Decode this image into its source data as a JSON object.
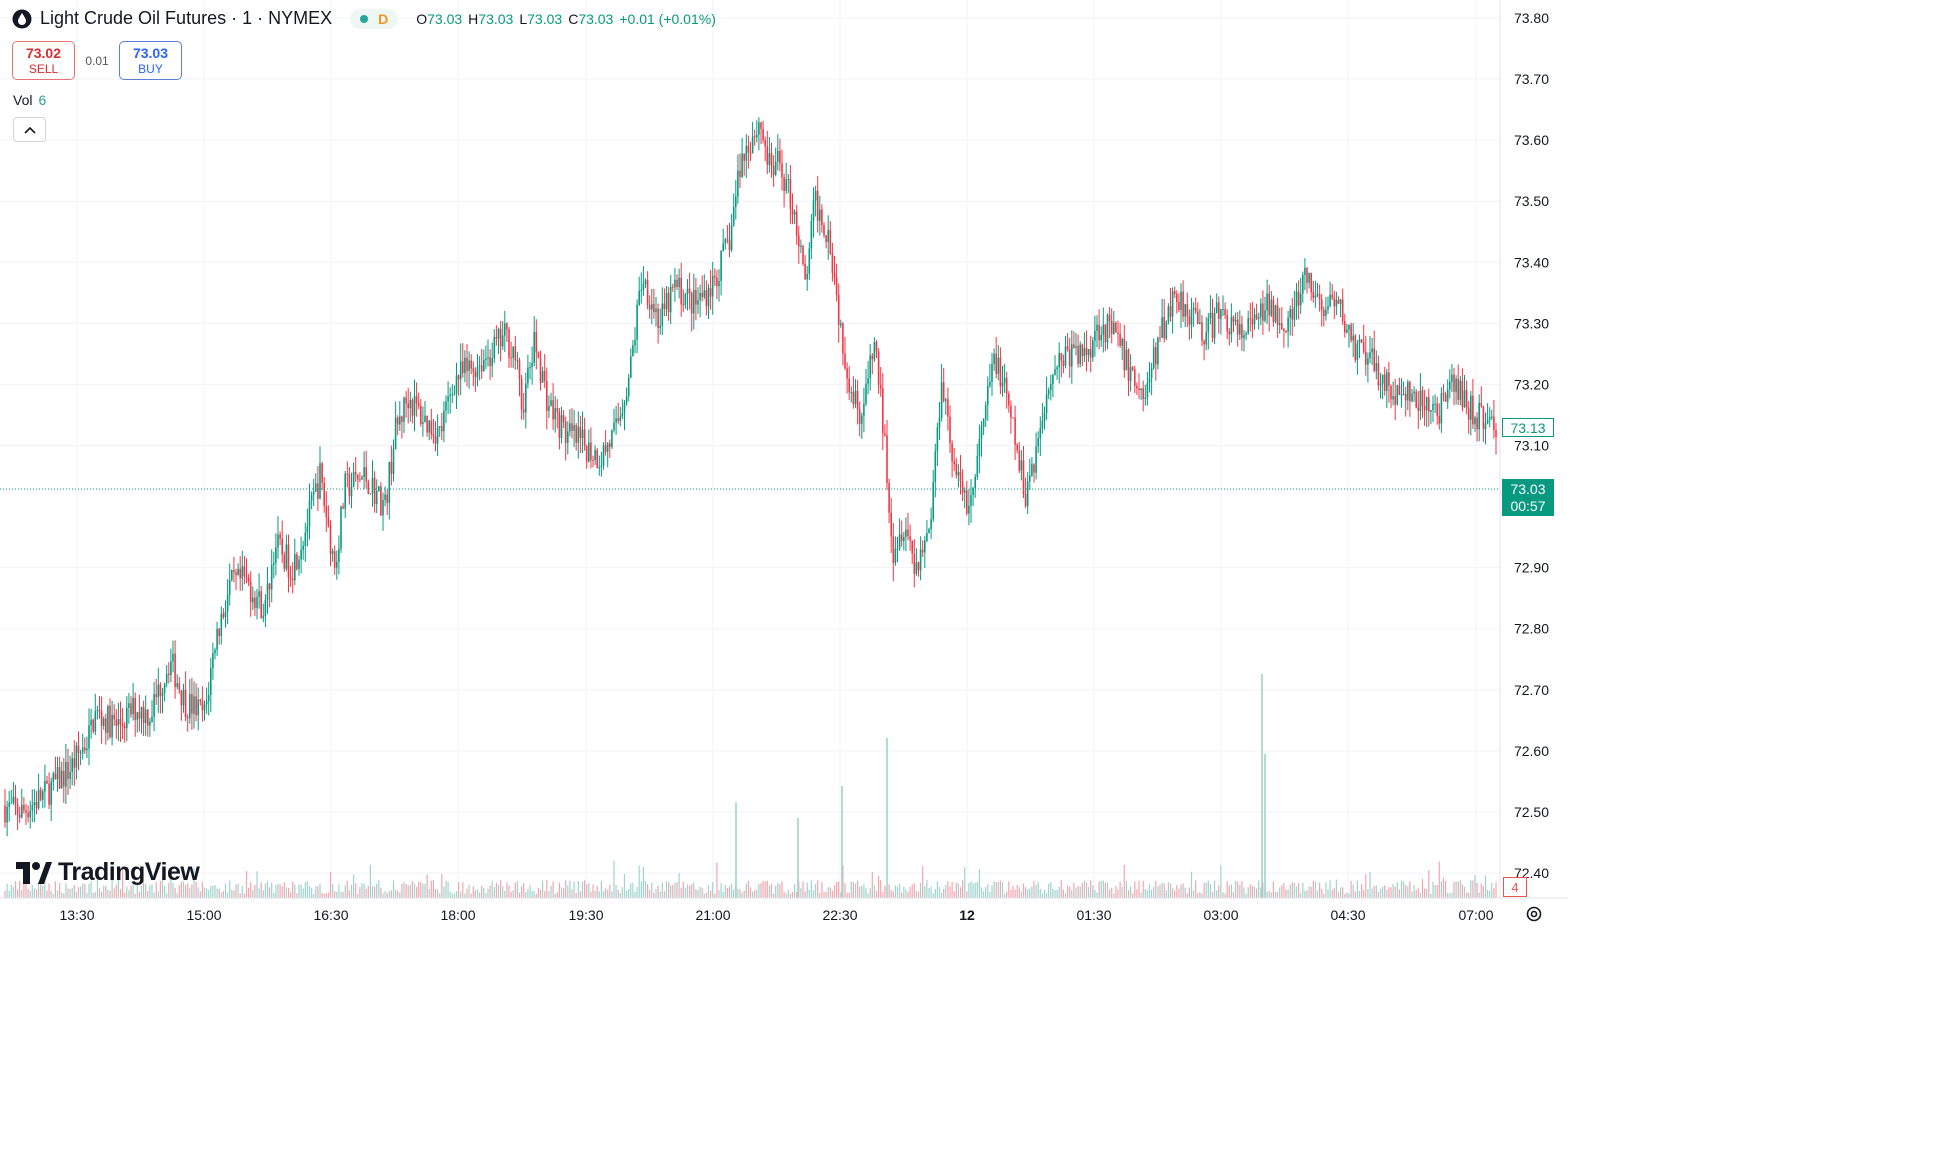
{
  "header": {
    "symbol_title": "Light Crude Oil Futures · 1 · NYMEX",
    "timeframe_badge": "D",
    "ohlc": {
      "o_label": "O",
      "o_value": "73.03",
      "h_label": "H",
      "h_value": "73.03",
      "l_label": "L",
      "l_value": "73.03",
      "c_label": "C",
      "c_value": "73.03",
      "change": "+0.01 (+0.01%)"
    }
  },
  "trade": {
    "sell_price": "73.02",
    "sell_label": "SELL",
    "spread": "0.01",
    "buy_price": "73.03",
    "buy_label": "BUY"
  },
  "volume_legend": {
    "label": "Vol",
    "value": "6"
  },
  "logo_text": "TradingView",
  "price_badges": {
    "last_visible": "73.13",
    "current_price": "73.03",
    "countdown": "00:57",
    "volume_value": "4"
  },
  "colors": {
    "up": "#089981",
    "down": "#f23645",
    "vol_up": "#9fd3cd",
    "vol_down": "#f4a6ad",
    "grid": "#f0f3fa",
    "axis_text": "#131722"
  },
  "chart_data": {
    "type": "candlestick",
    "x_ticks": [
      "13:30",
      "15:00",
      "16:30",
      "18:00",
      "19:30",
      "21:00",
      "22:30",
      "12",
      "01:30",
      "03:00",
      "04:30",
      "07:00"
    ],
    "y_ticks": [
      "73.80",
      "73.70",
      "73.60",
      "73.50",
      "73.40",
      "73.30",
      "73.20",
      "73.10",
      "72.90",
      "72.80",
      "72.70",
      "72.60",
      "72.50",
      "72.40"
    ],
    "ylim": [
      72.38,
      73.82
    ],
    "current_price": 73.03,
    "close_path": [
      {
        "t": 0,
        "v": 72.51
      },
      {
        "t": 22,
        "v": 72.5
      },
      {
        "t": 45,
        "v": 72.53
      },
      {
        "t": 70,
        "v": 72.57
      },
      {
        "t": 88,
        "v": 72.62
      },
      {
        "t": 95,
        "v": 72.66
      },
      {
        "t": 118,
        "v": 72.64
      },
      {
        "t": 135,
        "v": 72.67
      },
      {
        "t": 150,
        "v": 72.66
      },
      {
        "t": 170,
        "v": 72.75
      },
      {
        "t": 185,
        "v": 72.68
      },
      {
        "t": 205,
        "v": 72.66
      },
      {
        "t": 215,
        "v": 72.78
      },
      {
        "t": 230,
        "v": 72.87
      },
      {
        "t": 245,
        "v": 72.88
      },
      {
        "t": 265,
        "v": 72.83
      },
      {
        "t": 275,
        "v": 72.94
      },
      {
        "t": 292,
        "v": 72.9
      },
      {
        "t": 305,
        "v": 72.96
      },
      {
        "t": 320,
        "v": 73.05
      },
      {
        "t": 335,
        "v": 72.9
      },
      {
        "t": 345,
        "v": 73.03
      },
      {
        "t": 365,
        "v": 73.05
      },
      {
        "t": 385,
        "v": 73.0
      },
      {
        "t": 395,
        "v": 73.12
      },
      {
        "t": 408,
        "v": 73.18
      },
      {
        "t": 425,
        "v": 73.14
      },
      {
        "t": 440,
        "v": 73.12
      },
      {
        "t": 455,
        "v": 73.21
      },
      {
        "t": 475,
        "v": 73.23
      },
      {
        "t": 490,
        "v": 73.25
      },
      {
        "t": 505,
        "v": 73.28
      },
      {
        "t": 515,
        "v": 73.25
      },
      {
        "t": 522,
        "v": 73.16
      },
      {
        "t": 535,
        "v": 73.27
      },
      {
        "t": 548,
        "v": 73.17
      },
      {
        "t": 565,
        "v": 73.12
      },
      {
        "t": 585,
        "v": 73.1
      },
      {
        "t": 600,
        "v": 73.08
      },
      {
        "t": 615,
        "v": 73.12
      },
      {
        "t": 630,
        "v": 73.22
      },
      {
        "t": 642,
        "v": 73.38
      },
      {
        "t": 660,
        "v": 73.3
      },
      {
        "t": 675,
        "v": 73.36
      },
      {
        "t": 695,
        "v": 73.33
      },
      {
        "t": 715,
        "v": 73.37
      },
      {
        "t": 730,
        "v": 73.44
      },
      {
        "t": 740,
        "v": 73.56
      },
      {
        "t": 750,
        "v": 73.6
      },
      {
        "t": 760,
        "v": 73.63
      },
      {
        "t": 770,
        "v": 73.55
      },
      {
        "t": 780,
        "v": 73.56
      },
      {
        "t": 795,
        "v": 73.48
      },
      {
        "t": 805,
        "v": 73.36
      },
      {
        "t": 815,
        "v": 73.5
      },
      {
        "t": 830,
        "v": 73.44
      },
      {
        "t": 840,
        "v": 73.3
      },
      {
        "t": 850,
        "v": 73.2
      },
      {
        "t": 862,
        "v": 73.15
      },
      {
        "t": 875,
        "v": 73.27
      },
      {
        "t": 885,
        "v": 73.1
      },
      {
        "t": 893,
        "v": 72.93
      },
      {
        "t": 905,
        "v": 72.98
      },
      {
        "t": 915,
        "v": 72.9
      },
      {
        "t": 930,
        "v": 72.97
      },
      {
        "t": 942,
        "v": 73.22
      },
      {
        "t": 955,
        "v": 73.05
      },
      {
        "t": 970,
        "v": 73.0
      },
      {
        "t": 985,
        "v": 73.15
      },
      {
        "t": 995,
        "v": 73.25
      },
      {
        "t": 1010,
        "v": 73.15
      },
      {
        "t": 1025,
        "v": 73.02
      },
      {
        "t": 1040,
        "v": 73.12
      },
      {
        "t": 1050,
        "v": 73.22
      },
      {
        "t": 1065,
        "v": 73.25
      },
      {
        "t": 1085,
        "v": 73.25
      },
      {
        "t": 1100,
        "v": 73.3
      },
      {
        "t": 1115,
        "v": 73.28
      },
      {
        "t": 1130,
        "v": 73.22
      },
      {
        "t": 1145,
        "v": 73.18
      },
      {
        "t": 1160,
        "v": 73.28
      },
      {
        "t": 1175,
        "v": 73.35
      },
      {
        "t": 1190,
        "v": 73.32
      },
      {
        "t": 1205,
        "v": 73.28
      },
      {
        "t": 1220,
        "v": 73.32
      },
      {
        "t": 1240,
        "v": 73.28
      },
      {
        "t": 1255,
        "v": 73.3
      },
      {
        "t": 1270,
        "v": 73.33
      },
      {
        "t": 1290,
        "v": 73.3
      },
      {
        "t": 1305,
        "v": 73.37
      },
      {
        "t": 1320,
        "v": 73.33
      },
      {
        "t": 1340,
        "v": 73.32
      },
      {
        "t": 1355,
        "v": 73.26
      },
      {
        "t": 1375,
        "v": 73.23
      },
      {
        "t": 1395,
        "v": 73.18
      },
      {
        "t": 1410,
        "v": 73.18
      },
      {
        "t": 1425,
        "v": 73.16
      },
      {
        "t": 1440,
        "v": 73.16
      },
      {
        "t": 1455,
        "v": 73.2
      },
      {
        "t": 1470,
        "v": 73.16
      },
      {
        "t": 1485,
        "v": 73.14
      },
      {
        "t": 1500,
        "v": 73.13
      }
    ],
    "volume_spikes": [
      {
        "t": 736,
        "v": 0.3
      },
      {
        "t": 798,
        "v": 0.25
      },
      {
        "t": 842,
        "v": 0.35
      },
      {
        "t": 887,
        "v": 0.5
      },
      {
        "t": 1262,
        "v": 0.7
      },
      {
        "t": 1265,
        "v": 0.45
      }
    ]
  }
}
